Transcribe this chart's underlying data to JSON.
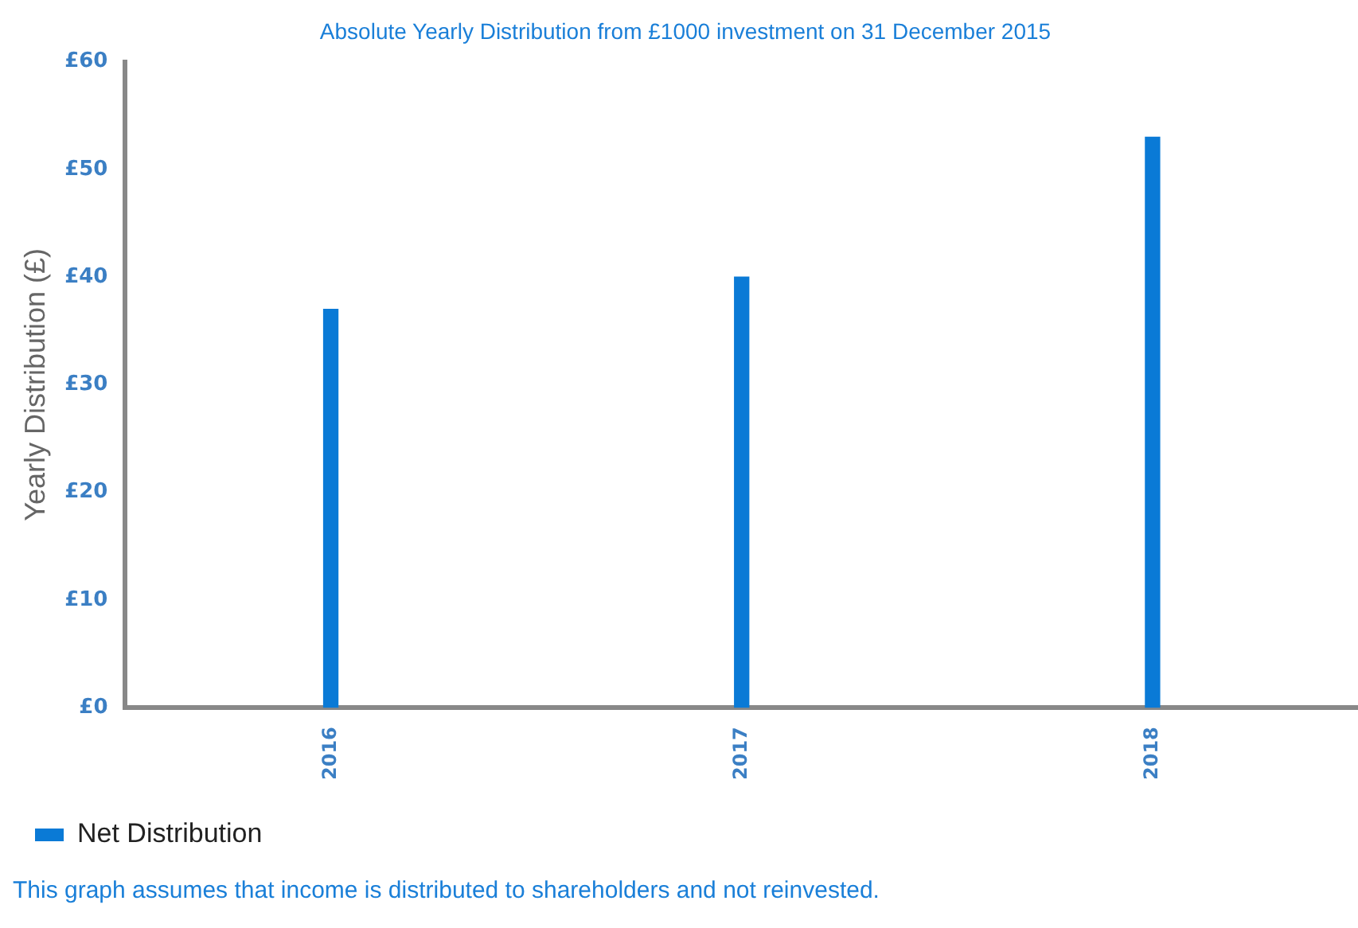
{
  "chart_data": {
    "type": "bar",
    "title": "Absolute Yearly Distribution from £1000 investment on 31 December 2015",
    "ylabel": "Yearly Distribution (£)",
    "categories": [
      "2016",
      "2017",
      "2018"
    ],
    "series": [
      {
        "name": "Net Distribution",
        "color": "#0a7ad6",
        "values": [
          37,
          40,
          53
        ]
      }
    ],
    "ylim": [
      0,
      60
    ],
    "yticks": [
      {
        "value": 0,
        "label": "£0"
      },
      {
        "value": 10,
        "label": "£10"
      },
      {
        "value": 20,
        "label": "£20"
      },
      {
        "value": 30,
        "label": "£30"
      },
      {
        "value": 40,
        "label": "£40"
      },
      {
        "value": 50,
        "label": "£50"
      },
      {
        "value": 60,
        "label": "£60"
      }
    ],
    "grid": false,
    "legend": "bottom left",
    "annotations": [
      "This graph assumes that income is distributed to shareholders and not reinvested."
    ]
  }
}
